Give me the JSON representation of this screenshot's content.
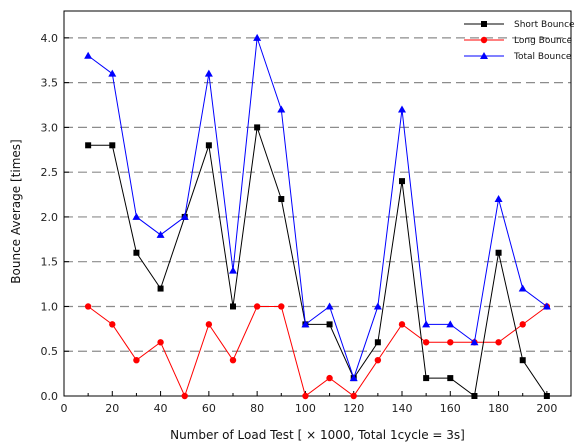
{
  "chart_data": {
    "type": "line",
    "xlabel": "Number of Load Test [ × 1000, Total 1cycle = 3s]",
    "ylabel": "Bounce Average [times]",
    "xlim": [
      0,
      210
    ],
    "ylim": [
      0,
      4.3
    ],
    "x_ticks": [
      0,
      20,
      40,
      60,
      80,
      100,
      120,
      140,
      160,
      180,
      200
    ],
    "y_ticks": [
      0.0,
      0.5,
      1.0,
      1.5,
      2.0,
      2.5,
      3.0,
      3.5,
      4.0
    ],
    "y_tick_labels": [
      "0.0",
      "0.5",
      "1.0",
      "1.5",
      "2.0",
      "2.5",
      "3.0",
      "3.5",
      "4.0"
    ],
    "grid": "horizontal dashed",
    "legend_position": "top-right",
    "x": [
      10,
      20,
      30,
      40,
      50,
      60,
      70,
      80,
      90,
      100,
      110,
      120,
      130,
      140,
      150,
      160,
      170,
      180,
      190,
      200
    ],
    "series": [
      {
        "name": "Short Bounce",
        "color": "#000000",
        "marker": "square",
        "values": [
          2.8,
          2.8,
          1.6,
          1.2,
          2.0,
          2.8,
          1.0,
          3.0,
          2.2,
          0.8,
          0.8,
          0.2,
          0.6,
          2.4,
          0.2,
          0.2,
          0.0,
          1.6,
          0.4,
          0.0
        ]
      },
      {
        "name": "Long Bounce",
        "color": "#ff0000",
        "marker": "circle",
        "values": [
          1.0,
          0.8,
          0.4,
          0.6,
          0.0,
          0.8,
          0.4,
          1.0,
          1.0,
          0.0,
          0.2,
          0.0,
          0.4,
          0.8,
          0.6,
          0.6,
          0.6,
          0.6,
          0.8,
          1.0
        ]
      },
      {
        "name": "Total Bounce",
        "color": "#0000ff",
        "marker": "triangle",
        "values": [
          3.8,
          3.6,
          2.0,
          1.8,
          2.0,
          3.6,
          1.4,
          4.0,
          3.2,
          0.8,
          1.0,
          0.2,
          1.0,
          3.2,
          0.8,
          0.8,
          0.6,
          2.2,
          1.2,
          1.0
        ]
      }
    ]
  }
}
